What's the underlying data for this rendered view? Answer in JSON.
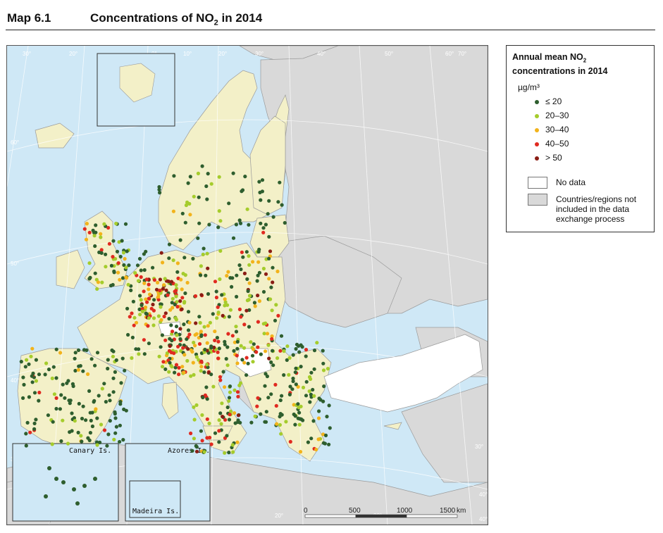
{
  "header": {
    "map_number": "Map 6.1",
    "title_main": "Concentrations of NO",
    "title_sub": "2",
    "title_tail": " in 2014"
  },
  "legend": {
    "title_line1_main": "Annual mean NO",
    "title_line1_sub": "2",
    "title_line2": "concentrations in 2014",
    "unit": "µg/m³",
    "classes": [
      {
        "label": "≤ 20",
        "color": "#2e5e2e"
      },
      {
        "label": "20–30",
        "color": "#a5cc2c"
      },
      {
        "label": "30–40",
        "color": "#f2b31b"
      },
      {
        "label": "40–50",
        "color": "#e02a20"
      },
      {
        "label": "> 50",
        "color": "#8a1d14"
      }
    ],
    "no_data_label": "No data",
    "not_included_label": "Countries/regions not included in the data exchange process"
  },
  "colors": {
    "sea": "#cfe8f6",
    "reporting_land": "#f3f0c8",
    "not_included_land": "#d9d9d9",
    "no_data_land": "#ffffff",
    "borders": "#8a8a8a"
  },
  "insets": {
    "canary": "Canary Is.",
    "azores": "Azores Is.",
    "madeira": "Madeira Is."
  },
  "graticule_labels": [
    "30°",
    "20°",
    "10°",
    "0°",
    "10°",
    "20°",
    "30°",
    "40°",
    "50°",
    "60°",
    "70°",
    "60°",
    "50°",
    "40°",
    "30°",
    "20°",
    "30°",
    "40°",
    "20°",
    "30°",
    "40°",
    "10°",
    "20°",
    "10°",
    "20°",
    "30°",
    "40°"
  ],
  "scale_bar": {
    "ticks": [
      "0",
      "500",
      "1000",
      "1500"
    ],
    "unit": "km"
  }
}
